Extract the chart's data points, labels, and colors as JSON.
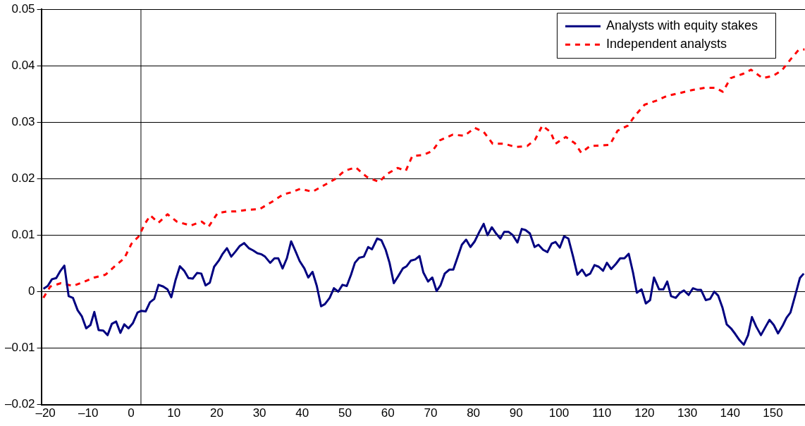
{
  "chart_data": {
    "type": "line",
    "xlim": [
      -21,
      157.5
    ],
    "xticks": [
      {
        "value": -20,
        "label": "–20"
      },
      {
        "value": -10,
        "label": "–10"
      },
      0,
      10,
      20,
      30,
      40,
      50,
      60,
      70,
      80,
      90,
      100,
      110,
      120,
      130,
      140,
      150
    ],
    "ylim": [
      -0.02,
      0.05
    ],
    "yticks": [
      {
        "value": -0.02,
        "label": "–0.02"
      },
      {
        "value": -0.01,
        "label": "–0.01"
      },
      0,
      0.01,
      0.02,
      0.03,
      0.04,
      0.05
    ],
    "grid": "y",
    "legend": "top right",
    "marker": "none",
    "ref_lines": [
      {
        "axis": "x",
        "value": 2.3,
        "label": null,
        "color": "#000000"
      }
    ],
    "series": [
      {
        "name": "Analysts with equity stakes",
        "color": "#000080",
        "line_style": "solid",
        "x": [
          -20.5,
          -19.5,
          -18.5,
          -17.5,
          -16.5,
          -15.6,
          -14.6,
          -13.6,
          -12.5,
          -11.5,
          -10.5,
          -9.5,
          -8.6,
          -7.6,
          -6.5,
          -5.5,
          -4.5,
          -3.5,
          -2.5,
          -1.6,
          -0.6,
          0.4,
          1.5,
          2.4,
          3.4,
          4.4,
          5.4,
          6.4,
          7.5,
          8.5,
          9.4,
          10.4,
          11.4,
          12.4,
          13.4,
          14.4,
          15.4,
          16.4,
          17.4,
          18.4,
          19.4,
          20.5,
          21.4,
          22.4,
          23.4,
          24.4,
          25.4,
          26.4,
          27.5,
          28.5,
          29.5,
          30.5,
          31.3,
          32.5,
          33.5,
          34.4,
          35.4,
          36.4,
          37.4,
          38.4,
          39.4,
          40.5,
          41.4,
          42.4,
          43.4,
          44.4,
          45.3,
          46.4,
          47.4,
          48.4,
          49.4,
          50.4,
          51.4,
          52.3,
          53.3,
          54.4,
          55.4,
          56.3,
          57.5,
          58.5,
          59.5,
          60.4,
          61.4,
          62.4,
          63.5,
          64.4,
          65.4,
          66.4,
          67.4,
          68.3,
          69.4,
          70.4,
          71.4,
          72.3,
          73.3,
          74.4,
          75.3,
          76.3,
          77.3,
          78.3,
          79.3,
          80.3,
          81.4,
          82.4,
          83.3,
          84.3,
          85.3,
          86.3,
          87.2,
          88.2,
          89.2,
          90.3,
          91.3,
          92.2,
          93.2,
          94.3,
          95.2,
          96.3,
          97.3,
          98.3,
          99.2,
          100.2,
          101.2,
          102.2,
          103.3,
          104.3,
          105.4,
          106.3,
          107.3,
          108.3,
          109.3,
          110.3,
          111.2,
          112.2,
          113.3,
          114.3,
          115.3,
          116.3,
          117.3,
          118.2,
          119.3,
          120.3,
          121.3,
          122.2,
          123.4,
          124.4,
          125.3,
          126.2,
          127.3,
          128.3,
          129.2,
          130.3,
          131.3,
          132.4,
          133.2,
          134.3,
          135.3,
          136.3,
          137.2,
          138.2,
          139.2,
          140.2,
          141.2,
          142.2,
          143.2,
          144.2,
          145.1,
          146.1,
          147.2,
          148.3,
          149.2,
          150.2,
          151.2,
          152.3,
          153.2,
          154.1,
          155.2,
          156.3,
          157.2
        ],
        "values": [
          0.0005,
          0.001,
          0.0022,
          0.0024,
          0.0037,
          0.0046,
          -0.0008,
          -0.0011,
          -0.0033,
          -0.0044,
          -0.0065,
          -0.0059,
          -0.0036,
          -0.0068,
          -0.0069,
          -0.0077,
          -0.0057,
          -0.0053,
          -0.0073,
          -0.0058,
          -0.0065,
          -0.0056,
          -0.0037,
          -0.0034,
          -0.0035,
          -0.0019,
          -0.0013,
          0.0012,
          0.0009,
          0.0004,
          -0.001,
          0.0021,
          0.0045,
          0.0037,
          0.0024,
          0.0023,
          0.0033,
          0.0032,
          0.0011,
          0.0016,
          0.0044,
          0.0055,
          0.0067,
          0.0077,
          0.0062,
          0.0071,
          0.0081,
          0.0086,
          0.0077,
          0.0073,
          0.0068,
          0.0066,
          0.0062,
          0.0051,
          0.0059,
          0.0059,
          0.0041,
          0.0059,
          0.0089,
          0.0072,
          0.0054,
          0.0041,
          0.0025,
          0.0035,
          0.001,
          -0.0026,
          -0.0022,
          -0.0011,
          0.0006,
          0.0,
          0.0012,
          0.001,
          0.003,
          0.0051,
          0.006,
          0.0062,
          0.0079,
          0.0075,
          0.0094,
          0.0091,
          0.0074,
          0.0051,
          0.0015,
          0.0027,
          0.0041,
          0.0045,
          0.0055,
          0.0057,
          0.0063,
          0.0034,
          0.0018,
          0.0025,
          0.0001,
          0.0011,
          0.0032,
          0.0039,
          0.0039,
          0.0061,
          0.0083,
          0.0092,
          0.0079,
          0.0089,
          0.0106,
          0.012,
          0.01,
          0.0114,
          0.0103,
          0.0094,
          0.0106,
          0.0106,
          0.01,
          0.0087,
          0.0111,
          0.0109,
          0.0103,
          0.0079,
          0.0083,
          0.0074,
          0.007,
          0.0085,
          0.0088,
          0.0078,
          0.0098,
          0.0094,
          0.0062,
          0.003,
          0.0039,
          0.0028,
          0.0032,
          0.0047,
          0.0044,
          0.0037,
          0.0051,
          0.004,
          0.0049,
          0.0059,
          0.0059,
          0.0067,
          0.0034,
          -0.0002,
          0.0004,
          -0.0021,
          -0.0015,
          0.0025,
          0.0004,
          0.0004,
          0.0018,
          -0.0008,
          -0.0011,
          -0.0002,
          0.0002,
          -0.0006,
          0.0006,
          0.0003,
          0.0003,
          -0.0015,
          -0.0013,
          0.0,
          -0.0007,
          -0.0028,
          -0.0058,
          -0.0065,
          -0.0075,
          -0.0086,
          -0.0094,
          -0.0077,
          -0.0045,
          -0.0062,
          -0.0077,
          -0.0062,
          -0.005,
          -0.0059,
          -0.0074,
          -0.006,
          -0.0046,
          -0.0037,
          -0.0007,
          0.0024,
          0.0032
        ]
      },
      {
        "name": "Independent analysts",
        "color": "#ff0000",
        "line_style": "dashed",
        "x": [
          -20.5,
          -18.9,
          -16.4,
          -13.6,
          -11.1,
          -8.6,
          -6.0,
          -3.8,
          -1.6,
          0.1,
          1.8,
          3.2,
          4.5,
          6.4,
          8.5,
          10.7,
          13.9,
          16.5,
          18.1,
          20.2,
          22.5,
          24.5,
          27.1,
          30.0,
          32.9,
          35.5,
          37.5,
          39.5,
          42.4,
          45.0,
          47.6,
          49.9,
          52.5,
          55.1,
          58.0,
          59.7,
          62.3,
          64.2,
          65.7,
          68.3,
          70.4,
          72.2,
          75.2,
          77.9,
          80.3,
          82.4,
          84.5,
          87.2,
          89.9,
          92.6,
          94.4,
          96.1,
          98.0,
          99.2,
          101.6,
          103.7,
          105.2,
          107.3,
          110.1,
          111.9,
          113.7,
          116.1,
          117.9,
          120.0,
          122.7,
          125.4,
          128.4,
          131.1,
          134.1,
          136.5,
          138.3,
          140.1,
          143.1,
          144.9,
          147.6,
          150.0,
          152.1,
          154.2,
          156.0,
          157.4
        ],
        "values": [
          -0.0011,
          0.0009,
          0.0015,
          0.001,
          0.0017,
          0.0025,
          0.003,
          0.0045,
          0.0059,
          0.0085,
          0.0098,
          0.012,
          0.0135,
          0.0122,
          0.0137,
          0.0124,
          0.0117,
          0.0124,
          0.0115,
          0.0139,
          0.0142,
          0.0142,
          0.0145,
          0.0146,
          0.0159,
          0.0172,
          0.0176,
          0.0182,
          0.0177,
          0.0188,
          0.0199,
          0.0214,
          0.022,
          0.0203,
          0.0194,
          0.0208,
          0.0219,
          0.0214,
          0.024,
          0.0242,
          0.0249,
          0.0268,
          0.0278,
          0.0276,
          0.029,
          0.0283,
          0.0262,
          0.0262,
          0.0256,
          0.0258,
          0.0269,
          0.0294,
          0.0283,
          0.0262,
          0.0274,
          0.0263,
          0.0246,
          0.0258,
          0.0259,
          0.026,
          0.0285,
          0.0294,
          0.0313,
          0.0331,
          0.0338,
          0.0347,
          0.0352,
          0.0357,
          0.0361,
          0.0361,
          0.0354,
          0.0378,
          0.0386,
          0.0393,
          0.0378,
          0.0382,
          0.0392,
          0.0412,
          0.0428,
          0.0429
        ]
      }
    ]
  }
}
